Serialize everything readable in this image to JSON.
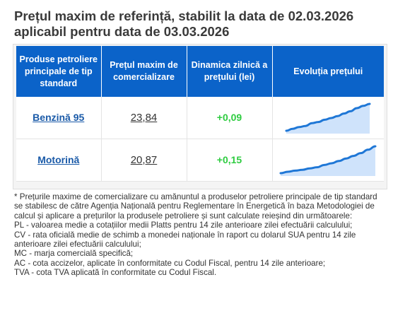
{
  "title": "Prețul maxim de referință, stabilit la data de 02.03.2026 aplicabil pentru data de 03.03.2026",
  "table": {
    "headers": [
      "Produse petroliere principale de tip standard",
      "Prețul maxim de comercializare",
      "Dinamica zilnică a prețului (lei)",
      "Evoluția prețului"
    ],
    "rows": [
      {
        "product": "Benzină 95",
        "price": "23,84",
        "delta": "+0,09",
        "trend": [
          0.05,
          0.12,
          0.18,
          0.22,
          0.32,
          0.36,
          0.44,
          0.5,
          0.57,
          0.66,
          0.74,
          0.85,
          0.93,
          1.0
        ]
      },
      {
        "product": "Motorină",
        "price": "20,87",
        "delta": "+0,15",
        "trend": [
          0.05,
          0.1,
          0.14,
          0.17,
          0.22,
          0.26,
          0.34,
          0.4,
          0.48,
          0.57,
          0.66,
          0.76,
          0.88,
          1.0
        ]
      }
    ],
    "colors": {
      "header": "#0b63c9",
      "delta": "#2ecc40",
      "link": "#1a5aa8",
      "spark_line": "#1f77d6",
      "spark_fill": "#cfe3fb"
    }
  },
  "notes": [
    "* Prețurile maxime de comercializare cu amănuntul a produselor petroliere principale de tip standard se stabilesc de către Agenția Națională pentru Reglementare în Energetică în baza Metodologiei de calcul și aplicare a prețurilor la produsele petroliere și sunt calculate reieșind din următoarele:",
    "PL - valoarea medie a cotațiilor medii Platts pentru 14 zile anterioare zilei efectuării calculului;",
    "CV - rata oficială medie de schimb a monedei naționale în raport cu dolarul SUA pentru 14 zile anterioare zilei efectuării calculului;",
    "MC - marja comercială specifică;",
    "AC - cota accizelor, aplicate în conformitate cu Codul Fiscal, pentru 14 zile anterioare;",
    "TVA - cota TVA aplicată în conformitate cu Codul Fiscal."
  ]
}
